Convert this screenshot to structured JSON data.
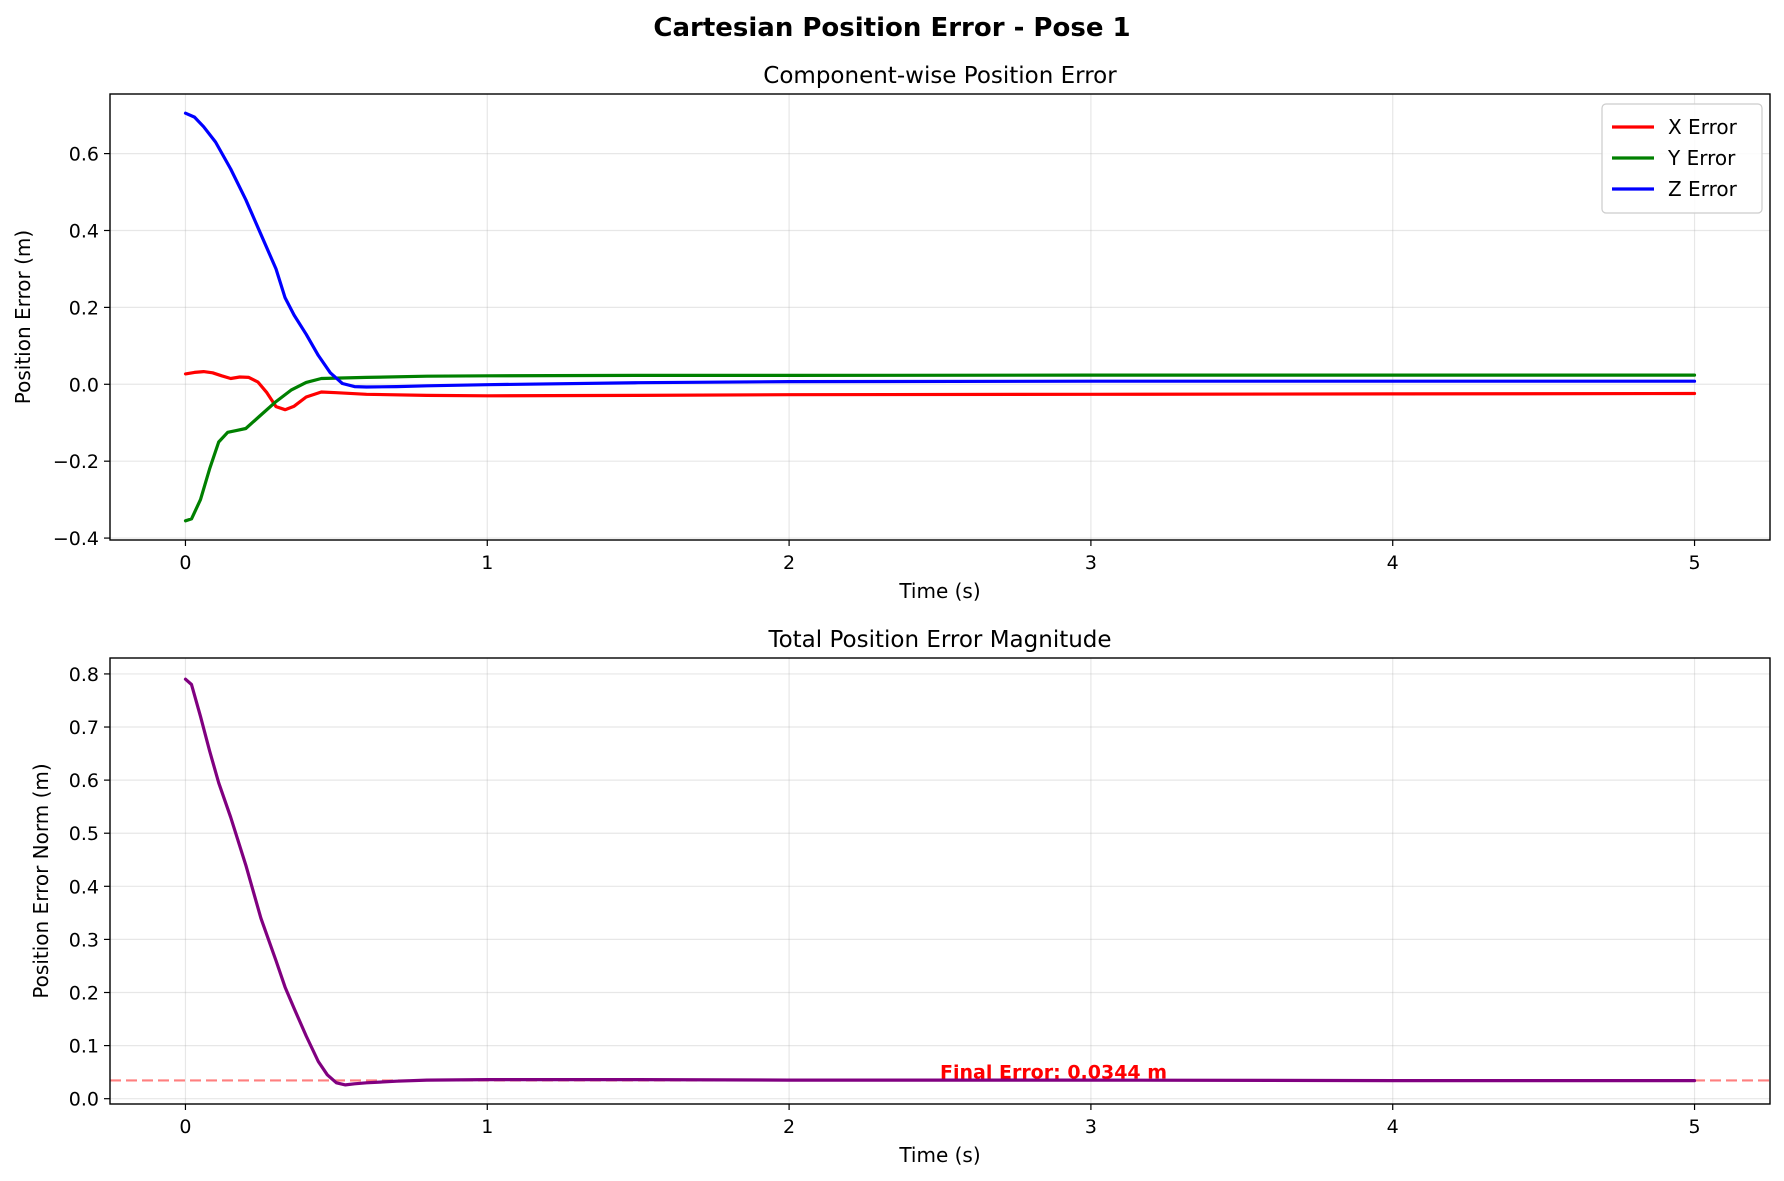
{
  "figure": {
    "title": "Cartesian Position Error - Pose 1"
  },
  "chart_data": [
    {
      "type": "line",
      "title": "Component-wise Position Error",
      "xlabel": "Time (s)",
      "ylabel": "Position Error (m)",
      "xlim": [
        -0.25,
        5.25
      ],
      "ylim": [
        -0.405,
        0.755
      ],
      "xticks": [
        0,
        1,
        2,
        3,
        4,
        5
      ],
      "yticks": [
        -0.4,
        -0.2,
        0.0,
        0.2,
        0.4,
        0.6
      ],
      "ytick_labels": [
        "−0.4",
        "−0.2",
        "0.0",
        "0.2",
        "0.4",
        "0.6"
      ],
      "grid": true,
      "legend": "top-right",
      "series": [
        {
          "name": "X Error",
          "color": "#ff0000",
          "x": [
            0,
            0.03,
            0.06,
            0.09,
            0.12,
            0.15,
            0.18,
            0.21,
            0.24,
            0.27,
            0.3,
            0.33,
            0.36,
            0.4,
            0.45,
            0.5,
            0.6,
            0.8,
            1.0,
            1.5,
            2.0,
            3.0,
            4.0,
            5.0
          ],
          "y": [
            0.027,
            0.031,
            0.033,
            0.03,
            0.022,
            0.015,
            0.019,
            0.018,
            0.006,
            -0.022,
            -0.058,
            -0.066,
            -0.057,
            -0.033,
            -0.02,
            -0.022,
            -0.026,
            -0.029,
            -0.03,
            -0.029,
            -0.027,
            -0.026,
            -0.025,
            -0.024
          ]
        },
        {
          "name": "Y Error",
          "color": "#008000",
          "x": [
            0,
            0.02,
            0.05,
            0.08,
            0.11,
            0.14,
            0.17,
            0.2,
            0.25,
            0.3,
            0.35,
            0.4,
            0.45,
            0.5,
            0.6,
            0.8,
            1.0,
            1.5,
            2.0,
            3.0,
            4.0,
            5.0
          ],
          "y": [
            -0.355,
            -0.35,
            -0.3,
            -0.22,
            -0.15,
            -0.125,
            -0.12,
            -0.115,
            -0.08,
            -0.045,
            -0.015,
            0.005,
            0.015,
            0.016,
            0.018,
            0.021,
            0.022,
            0.023,
            0.023,
            0.024,
            0.024,
            0.024
          ]
        },
        {
          "name": "Z Error",
          "color": "#0000ff",
          "x": [
            0,
            0.03,
            0.06,
            0.1,
            0.15,
            0.2,
            0.25,
            0.3,
            0.33,
            0.36,
            0.4,
            0.44,
            0.48,
            0.52,
            0.56,
            0.6,
            0.7,
            0.8,
            1.0,
            1.5,
            2.0,
            3.0,
            4.0,
            5.0
          ],
          "y": [
            0.705,
            0.695,
            0.67,
            0.63,
            0.56,
            0.48,
            0.39,
            0.3,
            0.225,
            0.18,
            0.13,
            0.075,
            0.03,
            0.002,
            -0.006,
            -0.007,
            -0.006,
            -0.004,
            -0.001,
            0.004,
            0.007,
            0.008,
            0.008,
            0.008
          ]
        }
      ]
    },
    {
      "type": "line",
      "title": "Total Position Error Magnitude",
      "xlabel": "Time (s)",
      "ylabel": "Position Error Norm (m)",
      "xlim": [
        -0.25,
        5.25
      ],
      "ylim": [
        -0.01,
        0.83
      ],
      "xticks": [
        0,
        1,
        2,
        3,
        4,
        5
      ],
      "yticks": [
        0.0,
        0.1,
        0.2,
        0.3,
        0.4,
        0.5,
        0.6,
        0.7,
        0.8
      ],
      "ytick_labels": [
        "0.0",
        "0.1",
        "0.2",
        "0.3",
        "0.4",
        "0.5",
        "0.6",
        "0.7",
        "0.8"
      ],
      "grid": true,
      "series": [
        {
          "color": "#800080",
          "x": [
            0,
            0.02,
            0.05,
            0.08,
            0.11,
            0.15,
            0.2,
            0.25,
            0.3,
            0.33,
            0.36,
            0.4,
            0.44,
            0.47,
            0.5,
            0.53,
            0.56,
            0.6,
            0.7,
            0.8,
            1.0,
            1.3,
            1.5,
            2.0,
            3.0,
            4.0,
            5.0
          ],
          "y": [
            0.79,
            0.78,
            0.72,
            0.655,
            0.595,
            0.53,
            0.44,
            0.34,
            0.26,
            0.21,
            0.17,
            0.118,
            0.07,
            0.045,
            0.03,
            0.026,
            0.028,
            0.03,
            0.033,
            0.035,
            0.036,
            0.036,
            0.036,
            0.035,
            0.035,
            0.034,
            0.034
          ]
        }
      ],
      "hline": {
        "y": 0.0344,
        "color": "#ff0000",
        "style": "dashed"
      },
      "annotation": {
        "text": "Final Error: 0.0344 m",
        "x": 2.5,
        "y": 0.036,
        "color": "#ff0000"
      }
    }
  ]
}
